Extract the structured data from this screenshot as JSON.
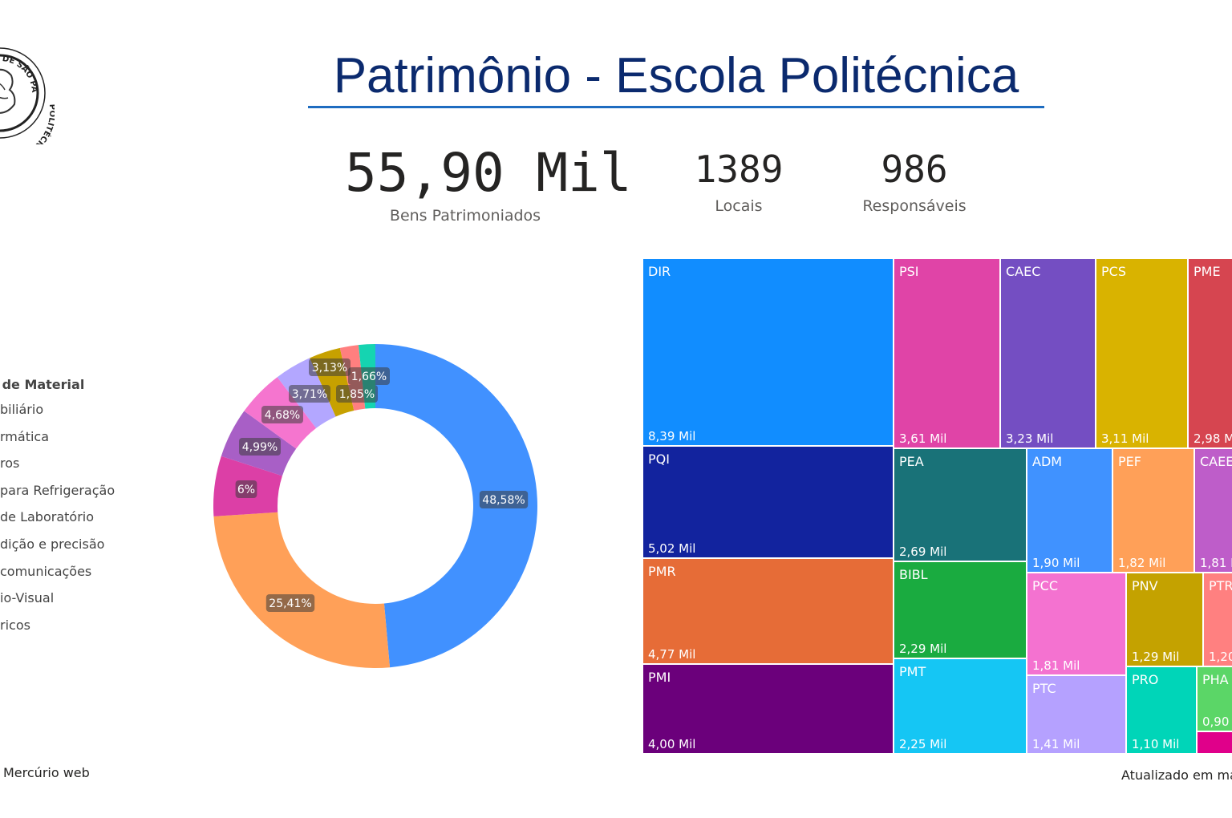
{
  "title": "Patrimônio - Escola Politécnica",
  "logo": {
    "text": "DE SÃO PAULO · POLITÉCNICA",
    "icon": "university-seal-icon"
  },
  "kpis": {
    "bens": {
      "value": "55,90 Mil",
      "label": "Bens Patrimoniados"
    },
    "locais": {
      "value": "1389",
      "label": "Locais"
    },
    "responsaveis": {
      "value": "986",
      "label": "Responsáveis"
    }
  },
  "legend": {
    "title": "o de Material",
    "items": [
      "biliário",
      "rmática",
      "ros",
      "para Refrigeração",
      "de Laboratório",
      "dição e precisão",
      "comunicações",
      "io-Visual",
      "ricos"
    ]
  },
  "footer": {
    "left": "Mercúrio web",
    "right": "Atualizado em ma"
  },
  "chart_data": [
    {
      "type": "pie",
      "subtype": "donut",
      "slices": [
        {
          "label": "48,58%",
          "value": 48.58,
          "color": "#4191FF"
        },
        {
          "label": "25,41%",
          "value": 25.41,
          "color": "#FFA058"
        },
        {
          "label": "6%",
          "value": 6.0,
          "color": "#DC3FA6"
        },
        {
          "label": "4,99%",
          "value": 4.99,
          "color": "#A85FC6"
        },
        {
          "label": "4,68%",
          "value": 4.68,
          "color": "#F575CF"
        },
        {
          "label": "3,71%",
          "value": 3.71,
          "color": "#B3A7FF"
        },
        {
          "label": "3,13%",
          "value": 3.13,
          "color": "#C7A100"
        },
        {
          "label": "1,85%",
          "value": 1.85,
          "color": "#FF7F7F"
        },
        {
          "label": "1,66%",
          "value": 1.66,
          "color": "#15D4B1"
        }
      ]
    },
    {
      "type": "treemap",
      "tiles": [
        {
          "label": "DIR",
          "value": "8,39 Mil",
          "color": "#118DFF"
        },
        {
          "label": "PQI",
          "value": "5,02 Mil",
          "color": "#12239E"
        },
        {
          "label": "PMR",
          "value": "4,77 Mil",
          "color": "#E66C37"
        },
        {
          "label": "PMI",
          "value": "4,00 Mil",
          "color": "#6B007B"
        },
        {
          "label": "PSI",
          "value": "3,61 Mil",
          "color": "#E044A7"
        },
        {
          "label": "CAEC",
          "value": "3,23 Mil",
          "color": "#744EC2"
        },
        {
          "label": "PCS",
          "value": "3,11 Mil",
          "color": "#D9B300"
        },
        {
          "label": "PME",
          "value": "2,98 M",
          "color": "#D64550"
        },
        {
          "label": "PEA",
          "value": "2,69 Mil",
          "color": "#197278"
        },
        {
          "label": "BIBL",
          "value": "2,29 Mil",
          "color": "#1AAB40"
        },
        {
          "label": "PMT",
          "value": "2,25 Mil",
          "color": "#15C6F4"
        },
        {
          "label": "ADM",
          "value": "1,90 Mil",
          "color": "#4092FF"
        },
        {
          "label": "PEF",
          "value": "1,82 Mil",
          "color": "#FFA058"
        },
        {
          "label": "CAEE",
          "value": "1,81 M",
          "color": "#BE5DC9"
        },
        {
          "label": "PCC",
          "value": "1,81 Mil",
          "color": "#F472D0"
        },
        {
          "label": "PTC",
          "value": "1,41 Mil",
          "color": "#B5A1FF"
        },
        {
          "label": "PNV",
          "value": "1,29 Mil",
          "color": "#C4A200"
        },
        {
          "label": "PRO",
          "value": "1,10 Mil",
          "color": "#00D5B8"
        },
        {
          "label": "PTR",
          "value": "1,20",
          "color": "#FF8080"
        },
        {
          "label": "PHA",
          "value": "0,90 M",
          "color": "#5BD667"
        },
        {
          "label": "",
          "value": "",
          "color": "#E0008A"
        }
      ]
    }
  ]
}
